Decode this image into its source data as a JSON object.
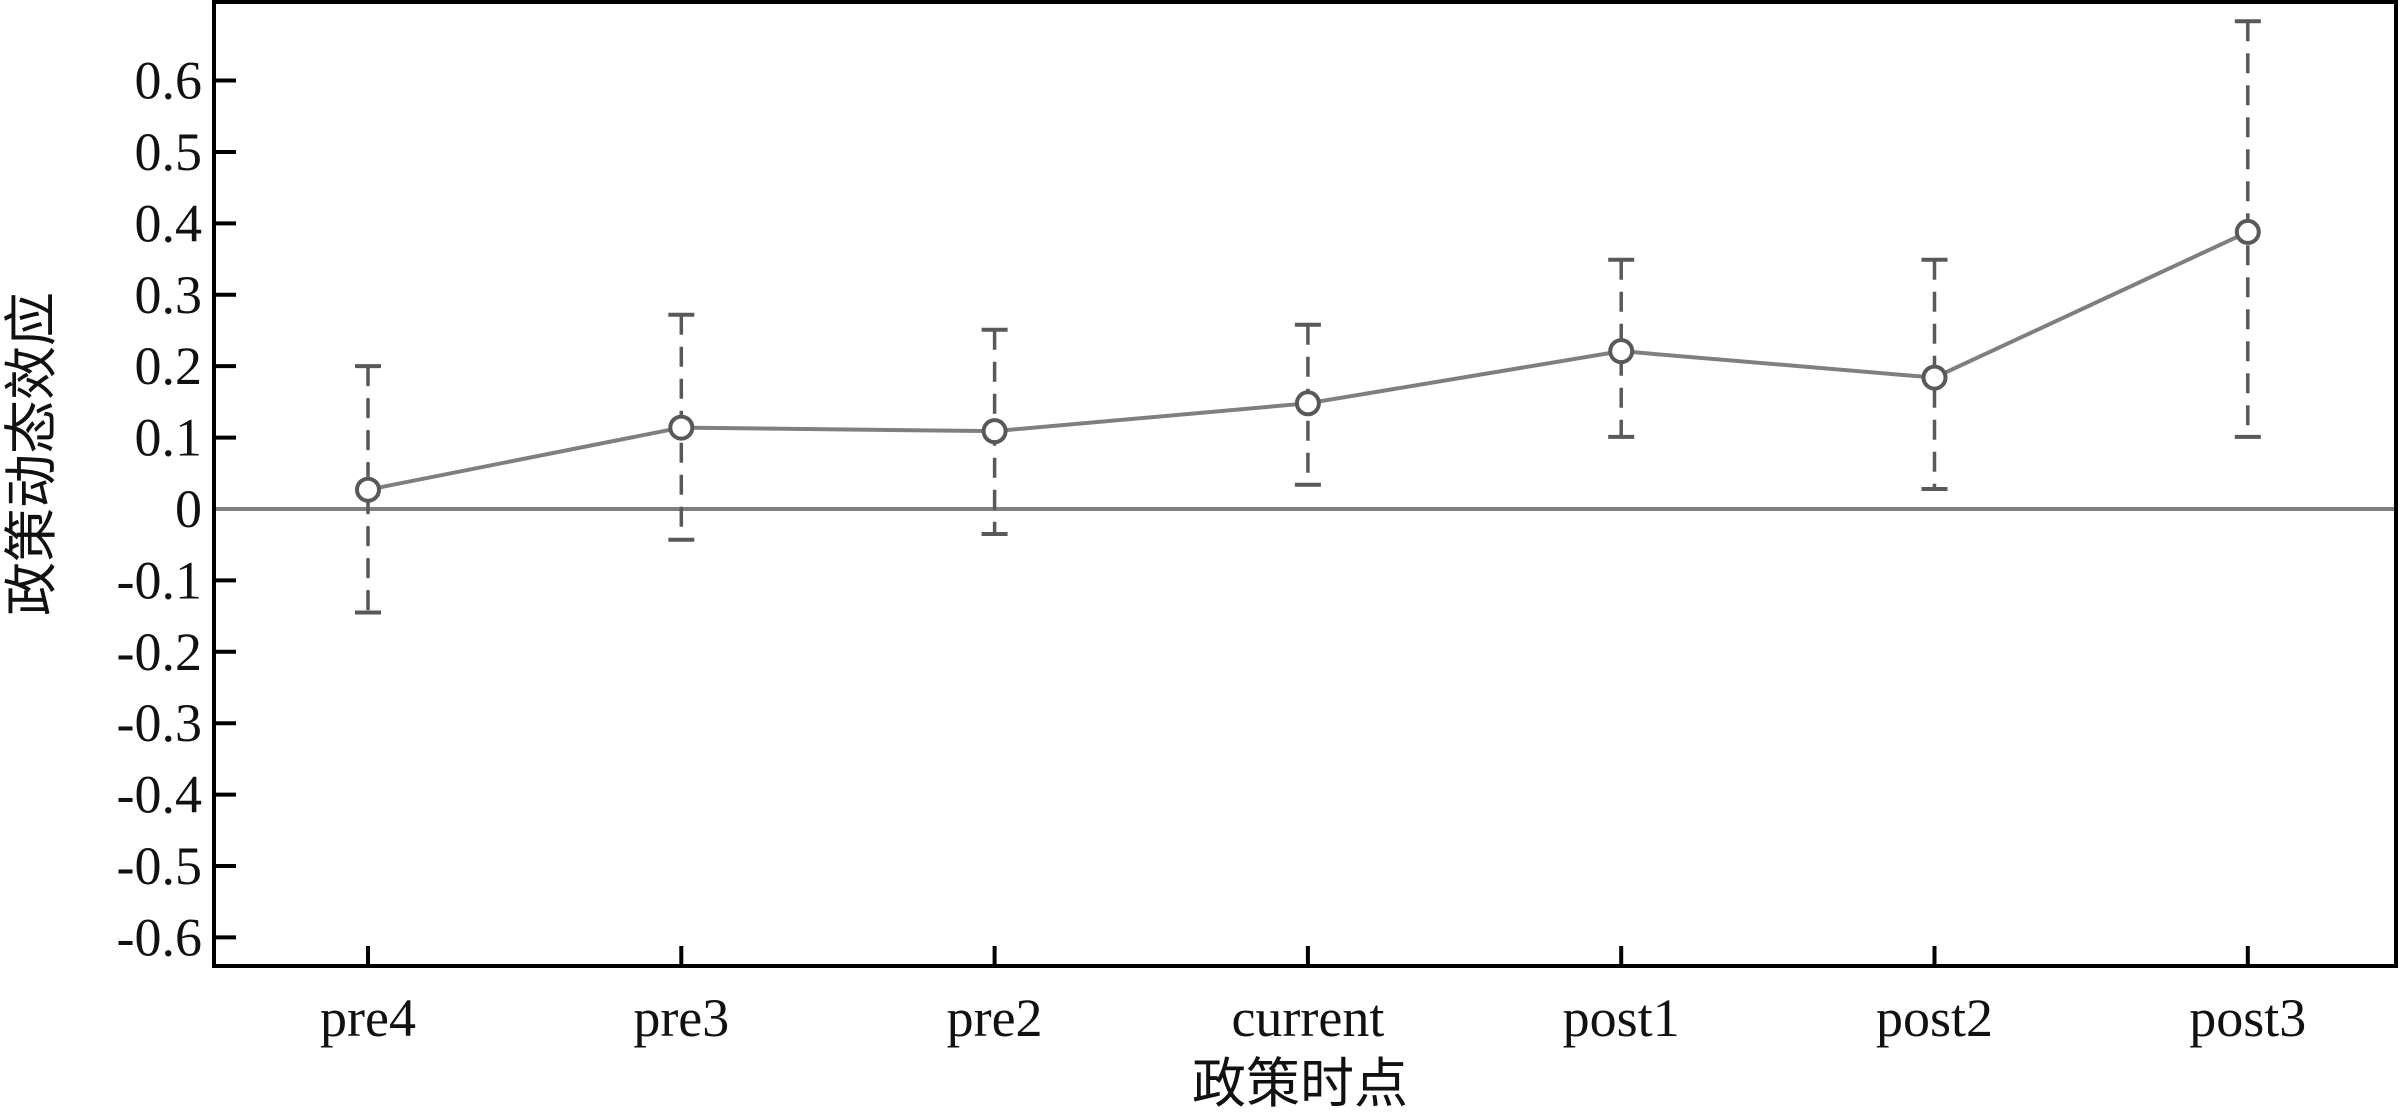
{
  "chart_data": {
    "type": "line",
    "title": "",
    "xlabel": "政策时点",
    "ylabel": "政策动态效应",
    "categories": [
      "pre4",
      "pre3",
      "pre2",
      "current",
      "post1",
      "post2",
      "post3"
    ],
    "series": [
      {
        "values": [
          0.027,
          0.114,
          0.109,
          0.148,
          0.221,
          0.184,
          0.388
        ],
        "ci_lower": [
          -0.145,
          -0.043,
          -0.035,
          0.034,
          0.101,
          0.028,
          0.101
        ],
        "ci_upper": [
          0.2,
          0.272,
          0.251,
          0.258,
          0.349,
          0.349,
          0.683
        ]
      }
    ],
    "ylim": [
      -0.64,
      0.71
    ],
    "yticks": [
      -0.6,
      -0.5,
      -0.4,
      -0.3,
      -0.2,
      -0.1,
      0,
      0.1,
      0.2,
      0.3,
      0.4,
      0.5,
      0.6
    ],
    "ytick_labels": [
      "-0.6",
      "-0.5",
      "-0.4",
      "-0.3",
      "-0.2",
      "-0.1",
      "0",
      "0.1",
      "0.2",
      "0.3",
      "0.4",
      "0.5",
      "0.6"
    ],
    "reference_line": 0,
    "grid": false,
    "legend": "none",
    "colors": {
      "line": "#7f7f7f",
      "error_bar": "#595959",
      "marker": "#595959",
      "axis": "#000000",
      "reference": "#7f7f7f"
    }
  }
}
